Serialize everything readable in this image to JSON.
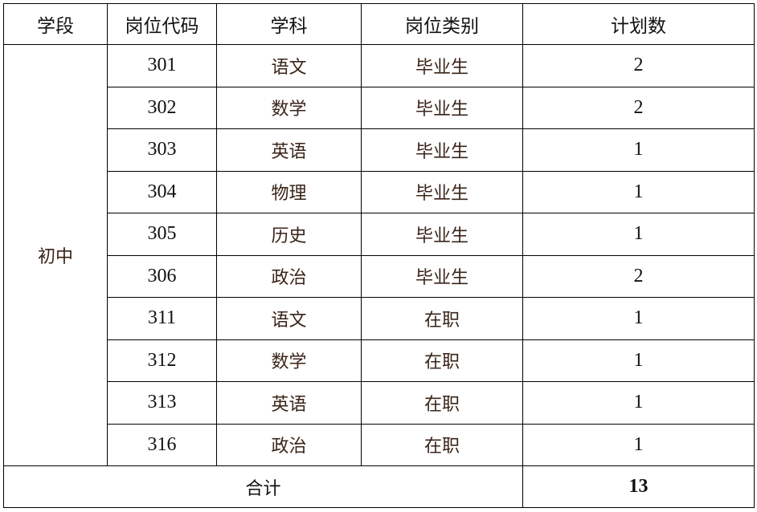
{
  "headers": [
    "学段",
    "岗位代码",
    "学科",
    "岗位类别",
    "计划数"
  ],
  "stage": "初中",
  "rows": [
    {
      "code": "301",
      "subject": "语文",
      "category": "毕业生",
      "count": "2"
    },
    {
      "code": "302",
      "subject": "数学",
      "category": "毕业生",
      "count": "2"
    },
    {
      "code": "303",
      "subject": "英语",
      "category": "毕业生",
      "count": "1"
    },
    {
      "code": "304",
      "subject": "物理",
      "category": "毕业生",
      "count": "1"
    },
    {
      "code": "305",
      "subject": "历史",
      "category": "毕业生",
      "count": "1"
    },
    {
      "code": "306",
      "subject": "政治",
      "category": "毕业生",
      "count": "2"
    },
    {
      "code": "311",
      "subject": "语文",
      "category": "在职",
      "count": "1"
    },
    {
      "code": "312",
      "subject": "数学",
      "category": "在职",
      "count": "1"
    },
    {
      "code": "313",
      "subject": "英语",
      "category": "在职",
      "count": "1"
    },
    {
      "code": "316",
      "subject": "政治",
      "category": "在职",
      "count": "1"
    }
  ],
  "total": {
    "label": "合计",
    "value": "13"
  }
}
